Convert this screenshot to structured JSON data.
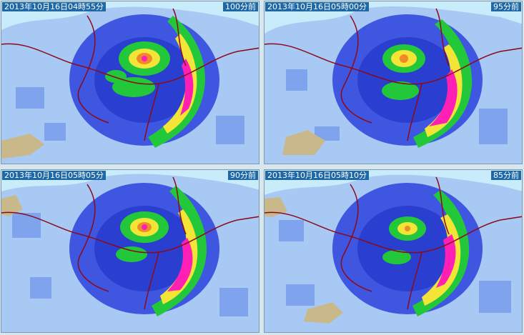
{
  "panels": [
    {
      "timestamp": "2013年10月16日04時55分",
      "ago": "100分前"
    },
    {
      "timestamp": "2013年10月16日05時00分",
      "ago": "95分前"
    },
    {
      "timestamp": "2013年10月16日05時05分",
      "ago": "90分前"
    },
    {
      "timestamp": "2013年10月16日05時10分",
      "ago": "85分前"
    }
  ],
  "colors": {
    "background_sea": "#c9ecfa",
    "light_rain": "#a9c9f5",
    "rain_blue": "#3f57e0",
    "deep_blue": "#2a3fcf",
    "green": "#22c83a",
    "yellow": "#f3e437",
    "orange": "#f08a28",
    "magenta": "#ff1fb4",
    "border_red": "#8b0a1a",
    "label_bg": "#1f68a8",
    "land": "#c9b88a"
  }
}
